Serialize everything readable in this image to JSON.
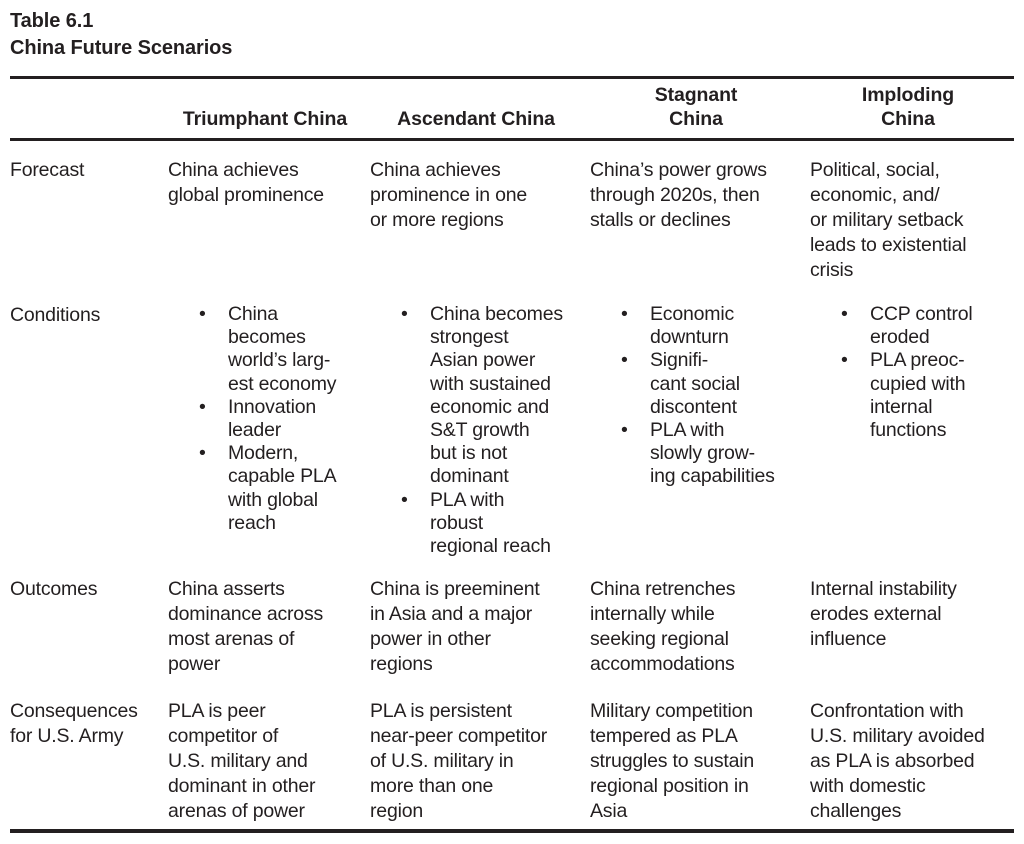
{
  "title": {
    "number": "Table 6.1",
    "name": "China Future Scenarios"
  },
  "icons": {
    "bullet": "•"
  },
  "colors": {
    "text": "#231f20",
    "rule": "#231f20",
    "background": "#ffffff"
  },
  "table": {
    "columns": [
      {
        "label": "Triumphant China"
      },
      {
        "label": "Ascendant China"
      },
      {
        "label": "Stagnant\nChina"
      },
      {
        "label": "Imploding\nChina"
      }
    ],
    "rows": [
      {
        "label": "Forecast",
        "cells": [
          {
            "text": "China achieves\nglobal prominence"
          },
          {
            "text": "China achieves\nprominence in one\nor more regions"
          },
          {
            "text": "China’s power grows\nthrough 2020s, then\nstalls or declines"
          },
          {
            "text": "Political, social,\neconomic, and/\nor military setback\nleads to existential\ncrisis"
          }
        ]
      },
      {
        "label": "Conditions",
        "cells": [
          {
            "items": [
              "China\nbecomes\nworld’s larg-\nest economy",
              "Innovation\nleader",
              "Modern,\ncapable PLA\nwith global\nreach"
            ]
          },
          {
            "items": [
              "China becomes\nstrongest\nAsian power\nwith sustained\neconomic and\nS&T growth\nbut is not\ndominant",
              "PLA with\nrobust\nregional reach"
            ]
          },
          {
            "items": [
              "Economic\ndownturn",
              "Signifi-\ncant social\ndiscontent",
              "PLA with\nslowly grow-\ning capabilities"
            ]
          },
          {
            "items": [
              "CCP control\neroded",
              "PLA preoc-\ncupied with\ninternal\nfunctions"
            ]
          }
        ]
      },
      {
        "label": "Outcomes",
        "cells": [
          {
            "text": "China asserts\ndominance across\nmost arenas of\npower"
          },
          {
            "text": "China is preeminent\nin Asia and a major\npower in other\nregions"
          },
          {
            "text": "China retrenches\ninternally while\nseeking regional\naccommodations"
          },
          {
            "text": "Internal instability\nerodes external\ninfluence"
          }
        ]
      },
      {
        "label": "Consequences\nfor U.S. Army",
        "cells": [
          {
            "text": "PLA is peer\ncompetitor of\nU.S. military and\ndominant in other\narenas of power"
          },
          {
            "text": "PLA is persistent\nnear-peer competitor\nof U.S. military in\nmore than one\nregion"
          },
          {
            "text": "Military competition\ntempered as PLA\nstruggles to sustain\nregional position in\nAsia"
          },
          {
            "text": "Confrontation with\nU.S. military avoided\nas PLA is absorbed\nwith domestic\nchallenges"
          }
        ]
      }
    ]
  }
}
